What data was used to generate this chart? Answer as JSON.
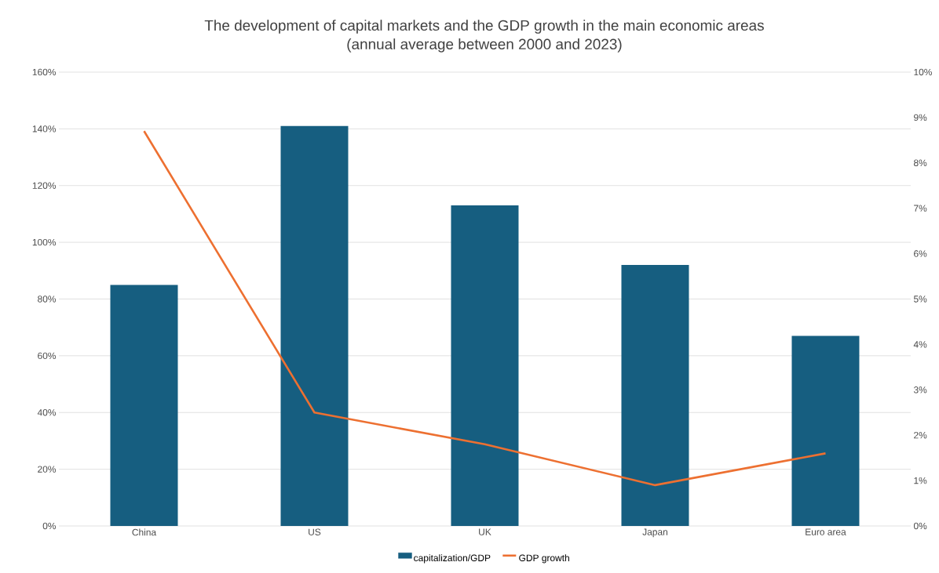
{
  "chart_data": {
    "type": "bar",
    "title": "The development of capital markets and the GDP growth in the main economic areas",
    "subtitle": "(annual average between 2000 and 2023)",
    "categories": [
      "China",
      "US",
      "UK",
      "Japan",
      "Euro area"
    ],
    "series": [
      {
        "name": "capitalization/GDP",
        "color": "#165e80",
        "values": [
          85,
          141,
          113,
          92,
          67
        ]
      },
      {
        "name": "GDP growth",
        "type": "line",
        "axis": "y2",
        "color": "#ed7031",
        "values": [
          8.7,
          2.5,
          1.8,
          0.9,
          1.6
        ]
      }
    ],
    "ylim": [
      0,
      160
    ],
    "yticks": [
      {
        "value": 0,
        "label": "0%"
      },
      {
        "value": 20,
        "label": "20%"
      },
      {
        "value": 40,
        "label": "40%"
      },
      {
        "value": 60,
        "label": "60%"
      },
      {
        "value": 80,
        "label": "80%"
      },
      {
        "value": 100,
        "label": "100%"
      },
      {
        "value": 120,
        "label": "120%"
      },
      {
        "value": 140,
        "label": "140%"
      },
      {
        "value": 160,
        "label": "160%"
      }
    ],
    "y2lim": [
      0,
      10
    ],
    "y2ticks": [
      {
        "value": 0,
        "label": "0%"
      },
      {
        "value": 1,
        "label": "1%"
      },
      {
        "value": 2,
        "label": "2%"
      },
      {
        "value": 3,
        "label": "3%"
      },
      {
        "value": 4,
        "label": "4%"
      },
      {
        "value": 5,
        "label": "5%"
      },
      {
        "value": 6,
        "label": "6%"
      },
      {
        "value": 7,
        "label": "7%"
      },
      {
        "value": 8,
        "label": "8%"
      },
      {
        "value": 9,
        "label": "9%"
      },
      {
        "value": 10,
        "label": "10%"
      }
    ],
    "grid": "y",
    "legend": "bottom",
    "marker": "none"
  }
}
